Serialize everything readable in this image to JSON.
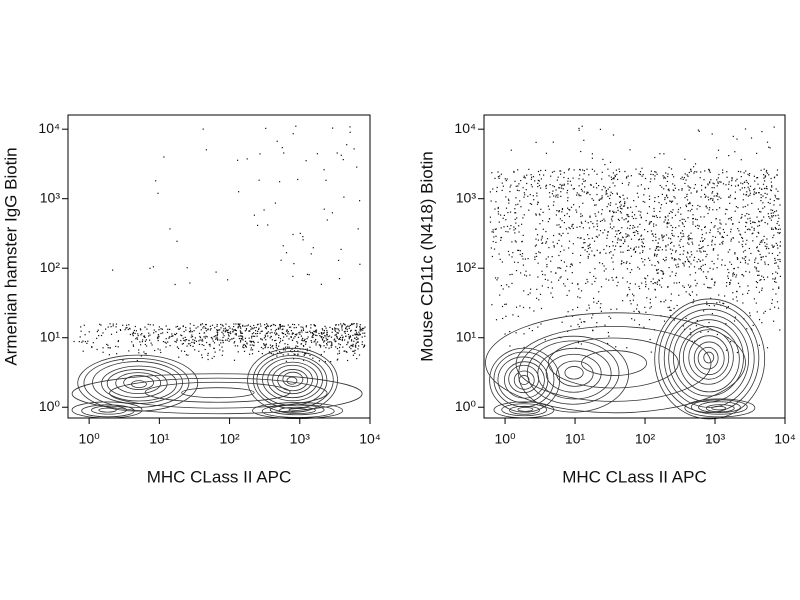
{
  "chart_data": [
    {
      "type": "contour",
      "xlabel": "MHC CLass II APC",
      "ylabel": "Armenian hamster IgG Biotin",
      "log": true,
      "xlim": [
        0.5,
        10000
      ],
      "ylim": [
        0.7,
        16000
      ],
      "xticks": [
        {
          "value": 1,
          "label": "10⁰"
        },
        {
          "value": 10,
          "label": "10¹"
        },
        {
          "value": 100,
          "label": "10²"
        },
        {
          "value": 1000,
          "label": "10³"
        },
        {
          "value": 10000,
          "label": "10⁴"
        }
      ],
      "yticks": [
        {
          "value": 1,
          "label": "10⁰"
        },
        {
          "value": 10,
          "label": "10¹"
        },
        {
          "value": 100,
          "label": "10²"
        },
        {
          "value": 1000,
          "label": "10³"
        },
        {
          "value": 10000,
          "label": "10⁴"
        }
      ]
    },
    {
      "type": "contour",
      "xlabel": "MHC CLass II APC",
      "ylabel": "Mouse CD11c (N418) Biotin",
      "log": true,
      "xlim": [
        0.5,
        10000
      ],
      "ylim": [
        0.7,
        16000
      ],
      "xticks": [
        {
          "value": 1,
          "label": "10⁰"
        },
        {
          "value": 10,
          "label": "10¹"
        },
        {
          "value": 100,
          "label": "10²"
        },
        {
          "value": 1000,
          "label": "10³"
        },
        {
          "value": 10000,
          "label": "10⁴"
        }
      ],
      "yticks": [
        {
          "value": 1,
          "label": "10⁰"
        },
        {
          "value": 10,
          "label": "10¹"
        },
        {
          "value": 100,
          "label": "10²"
        },
        {
          "value": 1000,
          "label": "10³"
        },
        {
          "value": 10000,
          "label": "10⁴"
        }
      ]
    }
  ]
}
